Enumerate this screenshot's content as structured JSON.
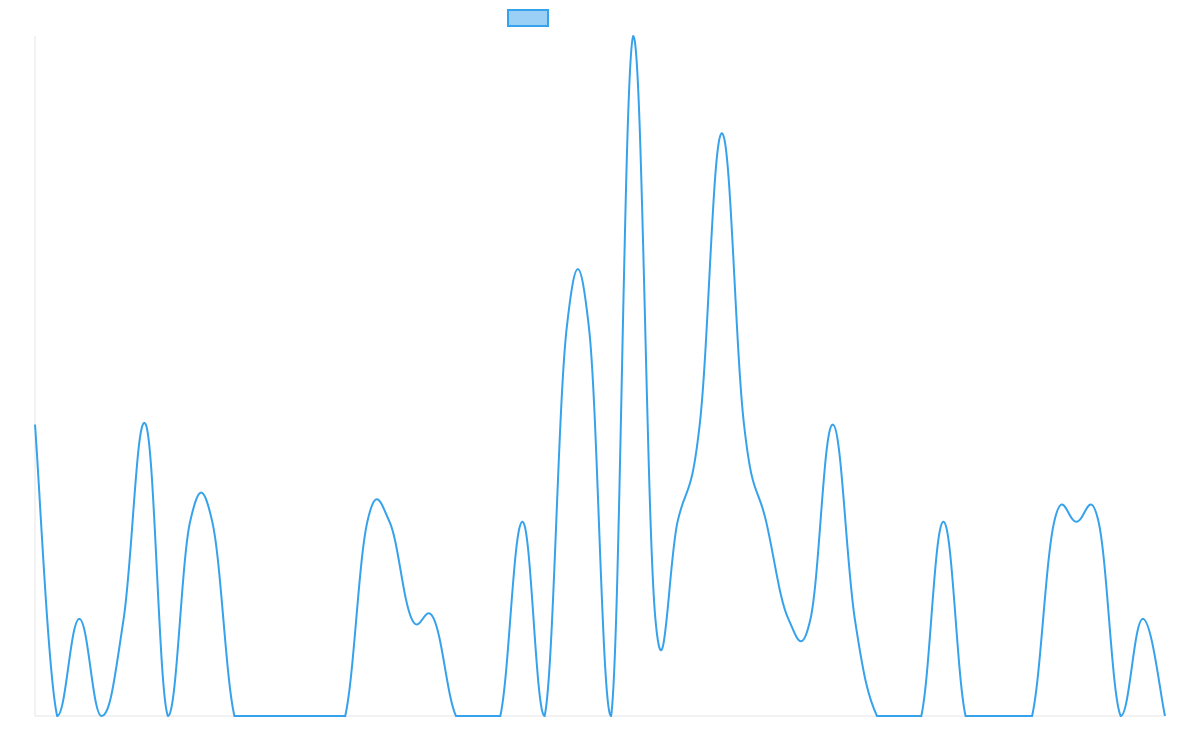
{
  "chart_data": {
    "type": "line",
    "categories": [
      null,
      null,
      null,
      null,
      null,
      null,
      null,
      null,
      null,
      null,
      null,
      null,
      null,
      null,
      null,
      null,
      null,
      null,
      null,
      null,
      null,
      null,
      null,
      null,
      null,
      null,
      null,
      null,
      null,
      null,
      null,
      null,
      null,
      null,
      null,
      null,
      null,
      null,
      null,
      null,
      null,
      null,
      null,
      null,
      null,
      null,
      null,
      null,
      null,
      null,
      null,
      null
    ],
    "series": [
      {
        "color": "#36a2eb",
        "fill": "#9ad0f5",
        "values": [
          3,
          0,
          1,
          0,
          1,
          3,
          0,
          2,
          2,
          0,
          0,
          0,
          0,
          0,
          0,
          2,
          2,
          1,
          1,
          0,
          0,
          0,
          2,
          0,
          4,
          4,
          0,
          7,
          1,
          2,
          3,
          6,
          3,
          2,
          1,
          1,
          3,
          1,
          0,
          0,
          0,
          2,
          0,
          0,
          0,
          0,
          2,
          2,
          2,
          0,
          1,
          0
        ]
      }
    ],
    "ylim": [
      0,
      7
    ]
  }
}
